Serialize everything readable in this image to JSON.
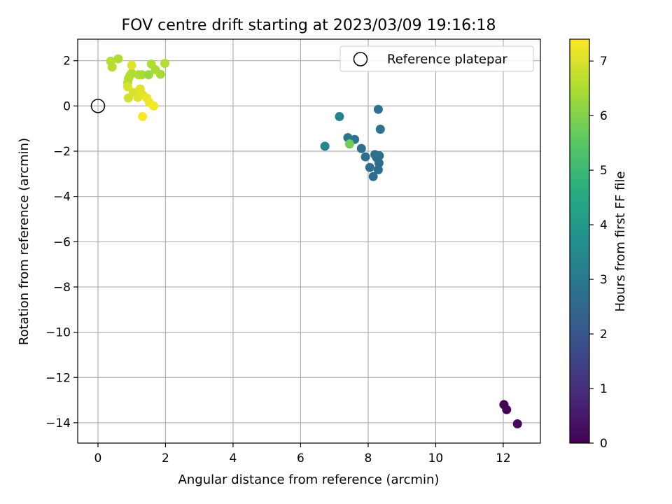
{
  "chart_data": {
    "type": "scatter",
    "title": "FOV centre drift starting at 2023/03/09 19:16:18",
    "xlabel": "Angular distance from reference (arcmin)",
    "ylabel": "Rotation from reference (arcmin)",
    "xlim": [
      -0.6,
      13.1
    ],
    "ylim": [
      -14.9,
      2.95
    ],
    "xticks": [
      0,
      2,
      4,
      6,
      8,
      10,
      12
    ],
    "yticks": [
      2,
      0,
      -2,
      -4,
      -6,
      -8,
      -10,
      -12,
      -14
    ],
    "tick_labels_x": [
      "0",
      "2",
      "4",
      "6",
      "8",
      "10",
      "12"
    ],
    "tick_labels_y": [
      "2",
      "0",
      "−2",
      "−4",
      "−6",
      "−8",
      "−10",
      "−12",
      "−14"
    ],
    "grid": true,
    "legend": {
      "position": "top-right",
      "entries": [
        {
          "label": "Reference platepar",
          "marker": "open-circle"
        }
      ]
    },
    "reference_point": {
      "x": 0,
      "y": 0
    },
    "colorbar": {
      "label": "Hours from first FF file",
      "colormap": "viridis",
      "range": [
        0,
        7.4
      ],
      "ticks": [
        0,
        1,
        2,
        3,
        4,
        5,
        6,
        7
      ],
      "tick_labels": [
        "0",
        "1",
        "2",
        "3",
        "4",
        "5",
        "6",
        "7"
      ]
    },
    "points": [
      {
        "x": 12.02,
        "y": -13.2,
        "c": 0.05
      },
      {
        "x": 12.1,
        "y": -13.42,
        "c": 0.1
      },
      {
        "x": 12.42,
        "y": -14.05,
        "c": 0.2
      },
      {
        "x": 6.72,
        "y": -1.78,
        "c": 3.4
      },
      {
        "x": 7.15,
        "y": -0.47,
        "c": 3.3
      },
      {
        "x": 7.4,
        "y": -1.4,
        "c": 2.9
      },
      {
        "x": 7.6,
        "y": -1.48,
        "c": 2.85
      },
      {
        "x": 7.8,
        "y": -1.88,
        "c": 2.8
      },
      {
        "x": 7.92,
        "y": -2.25,
        "c": 2.75
      },
      {
        "x": 8.05,
        "y": -2.72,
        "c": 2.7
      },
      {
        "x": 8.15,
        "y": -3.12,
        "c": 2.65
      },
      {
        "x": 8.2,
        "y": -2.15,
        "c": 2.7
      },
      {
        "x": 8.25,
        "y": -2.28,
        "c": 2.75
      },
      {
        "x": 8.3,
        "y": -2.82,
        "c": 2.7
      },
      {
        "x": 8.32,
        "y": -2.52,
        "c": 2.7
      },
      {
        "x": 8.33,
        "y": -2.2,
        "c": 2.75
      },
      {
        "x": 8.3,
        "y": -0.15,
        "c": 2.8
      },
      {
        "x": 8.36,
        "y": -1.03,
        "c": 2.8
      },
      {
        "x": 7.45,
        "y": -1.68,
        "c": 5.8
      },
      {
        "x": 0.38,
        "y": 1.98,
        "c": 6.6
      },
      {
        "x": 0.42,
        "y": 1.72,
        "c": 6.6
      },
      {
        "x": 0.6,
        "y": 2.08,
        "c": 6.5
      },
      {
        "x": 0.88,
        "y": 1.02,
        "c": 6.65
      },
      {
        "x": 0.9,
        "y": 1.2,
        "c": 6.6
      },
      {
        "x": 0.95,
        "y": 1.35,
        "c": 6.55
      },
      {
        "x": 1.0,
        "y": 1.45,
        "c": 6.6
      },
      {
        "x": 1.2,
        "y": 1.38,
        "c": 6.55
      },
      {
        "x": 1.3,
        "y": 1.38,
        "c": 6.45
      },
      {
        "x": 1.5,
        "y": 1.38,
        "c": 6.3
      },
      {
        "x": 1.58,
        "y": 1.85,
        "c": 6.55
      },
      {
        "x": 1.7,
        "y": 1.6,
        "c": 6.5
      },
      {
        "x": 1.85,
        "y": 1.4,
        "c": 6.45
      },
      {
        "x": 1.98,
        "y": 1.88,
        "c": 6.6
      },
      {
        "x": 1.0,
        "y": 1.8,
        "c": 7.1
      },
      {
        "x": 0.88,
        "y": 0.85,
        "c": 7.0
      },
      {
        "x": 0.9,
        "y": 0.35,
        "c": 6.9
      },
      {
        "x": 1.05,
        "y": 0.6,
        "c": 7.0
      },
      {
        "x": 1.18,
        "y": 0.38,
        "c": 7.05
      },
      {
        "x": 1.25,
        "y": 0.75,
        "c": 7.1
      },
      {
        "x": 1.32,
        "y": 0.5,
        "c": 7.1
      },
      {
        "x": 1.45,
        "y": 0.35,
        "c": 7.2
      },
      {
        "x": 1.52,
        "y": 0.15,
        "c": 7.25
      },
      {
        "x": 1.65,
        "y": 0.0,
        "c": 7.3
      },
      {
        "x": 1.32,
        "y": -0.47,
        "c": 7.35
      }
    ]
  }
}
